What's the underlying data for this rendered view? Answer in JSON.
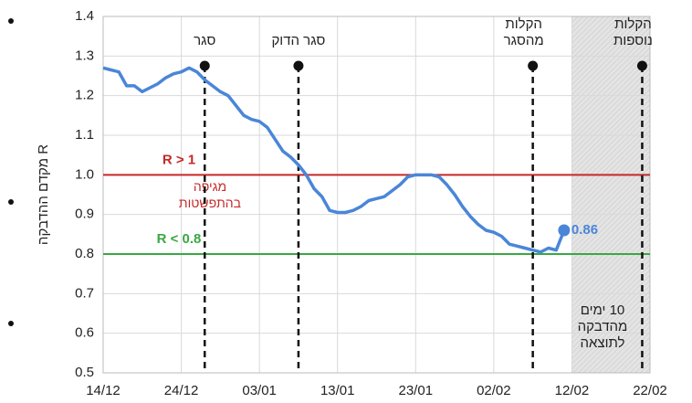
{
  "chart_data": {
    "type": "line",
    "y_label": "מקדם ההדבקה R",
    "x": [
      "14/12",
      "15/12",
      "16/12",
      "17/12",
      "18/12",
      "19/12",
      "20/12",
      "21/12",
      "22/12",
      "23/12",
      "24/12",
      "25/12",
      "26/12",
      "27/12",
      "28/12",
      "29/12",
      "30/12",
      "31/12",
      "01/01",
      "02/01",
      "03/01",
      "04/01",
      "05/01",
      "06/01",
      "07/01",
      "08/01",
      "09/01",
      "10/01",
      "11/01",
      "12/01",
      "13/01",
      "14/01",
      "15/01",
      "16/01",
      "17/01",
      "18/01",
      "19/01",
      "20/01",
      "21/01",
      "22/01",
      "23/01",
      "24/01",
      "25/01",
      "26/01",
      "27/01",
      "28/01",
      "29/01",
      "30/01",
      "31/01",
      "01/02",
      "02/02",
      "03/02",
      "04/02",
      "05/02",
      "06/02",
      "07/02",
      "08/02",
      "09/02",
      "10/02",
      "11/02"
    ],
    "series": [
      {
        "color": "#4a86d8",
        "values": [
          1.27,
          1.265,
          1.26,
          1.225,
          1.225,
          1.21,
          1.22,
          1.23,
          1.245,
          1.255,
          1.26,
          1.27,
          1.26,
          1.24,
          1.225,
          1.21,
          1.2,
          1.175,
          1.15,
          1.14,
          1.135,
          1.12,
          1.09,
          1.06,
          1.045,
          1.025,
          1.0,
          0.965,
          0.945,
          0.91,
          0.905,
          0.905,
          0.91,
          0.92,
          0.935,
          0.94,
          0.945,
          0.96,
          0.975,
          0.995,
          1.0,
          1.0,
          1.0,
          0.995,
          0.975,
          0.95,
          0.92,
          0.895,
          0.875,
          0.86,
          0.855,
          0.845,
          0.825,
          0.82,
          0.815,
          0.81,
          0.805,
          0.815,
          0.81,
          0.86
        ]
      }
    ],
    "xlim": [
      "14/12",
      "22/02"
    ],
    "xticks": [
      "14/12",
      "24/12",
      "03/01",
      "13/01",
      "23/01",
      "02/02",
      "12/02",
      "22/02"
    ],
    "ylim": [
      0.5,
      1.4
    ],
    "yticks": [
      0.5,
      0.6,
      0.7,
      0.8,
      0.9,
      {
        "value": 1,
        "label": "1.0"
      },
      1.1,
      1.2,
      1.3,
      1.4
    ],
    "grid": true,
    "reference_lines": [
      {
        "value": 1,
        "color": "#c62828",
        "label": "R > 1",
        "note": [
          "מגיפה",
          "בהתפשטות"
        ]
      },
      {
        "value": 0.8,
        "color": "#3aa843",
        "label": "R < 0.8"
      }
    ],
    "events": [
      {
        "x": "27/12",
        "label": [
          "סגר"
        ]
      },
      {
        "x": "08/01",
        "label": [
          "סגר הדוק"
        ]
      },
      {
        "x": "07/02",
        "label": [
          "הקלות",
          "מהסגר"
        ]
      },
      {
        "x": "21/02",
        "label": [
          "הקלות",
          "נוספות"
        ]
      }
    ],
    "shade": {
      "from": "12/02",
      "to": "22/02",
      "label": [
        "10 ימים",
        "מהדבקה",
        "לתוצאה"
      ]
    }
  }
}
